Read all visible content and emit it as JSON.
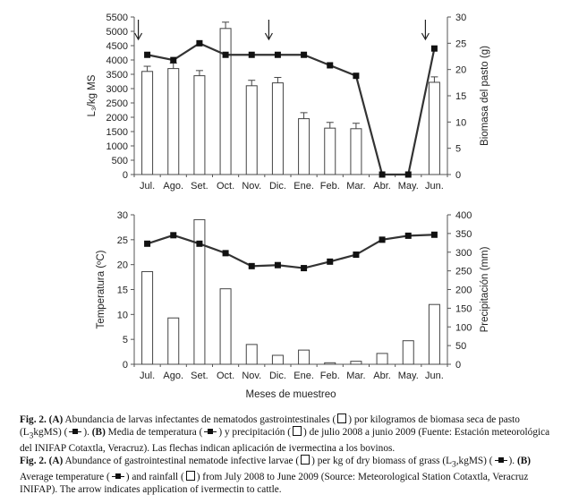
{
  "chart_data": [
    {
      "type": "bar",
      "categories": [
        "Jul.",
        "Ago.",
        "Set.",
        "Oct.",
        "Nov.",
        "Dic.",
        "Ene.",
        "Feb.",
        "Mar.",
        "Abr.",
        "May.",
        "Jun."
      ],
      "ylabel": "L₃/kg MS",
      "y2label": "Biomasa del pasto (g)",
      "ylim": [
        0,
        5500
      ],
      "y2lim": [
        0,
        30
      ],
      "yticks": [
        "0",
        "500",
        "1000",
        "1500",
        "2000",
        "2500",
        "3000",
        "3500",
        "4000",
        "4500",
        "5000",
        "5500"
      ],
      "y2ticks": [
        "0",
        "5",
        "10",
        "15",
        "20",
        "25",
        "30"
      ],
      "series": [
        {
          "type": "bar",
          "axis": "left",
          "values": [
            3600,
            3700,
            3450,
            5100,
            3100,
            3200,
            1950,
            1620,
            1600,
            0,
            0,
            3220
          ],
          "errors": [
            180,
            190,
            180,
            220,
            190,
            190,
            210,
            200,
            190,
            0,
            0,
            190
          ]
        },
        {
          "type": "line",
          "axis": "right",
          "values": [
            22.8,
            21.8,
            25.0,
            22.8,
            22.8,
            22.8,
            22.8,
            20.8,
            18.8,
            0,
            0,
            24.0
          ]
        }
      ],
      "arrows": [
        "Jul.",
        "Dic.",
        "Jun."
      ]
    },
    {
      "type": "bar",
      "categories": [
        "Jul.",
        "Ago.",
        "Set.",
        "Oct.",
        "Nov.",
        "Dic.",
        "Ene.",
        "Feb.",
        "Mar.",
        "Abr.",
        "May.",
        "Jun."
      ],
      "xlabel": "Meses de muestreo",
      "ylabel": "Temperatura (ºC)",
      "y2label": "Precipitación (mm)",
      "ylim": [
        0,
        30
      ],
      "y2lim": [
        0,
        400
      ],
      "yticks": [
        "0",
        "5",
        "10",
        "15",
        "20",
        "25",
        "30"
      ],
      "y2ticks": [
        "0",
        "50",
        "100",
        "150",
        "200",
        "250",
        "300",
        "350",
        "400"
      ],
      "series": [
        {
          "type": "bar",
          "axis": "right",
          "values": [
            248,
            124,
            387,
            202,
            53,
            24,
            38,
            4,
            8,
            29,
            63,
            160
          ]
        },
        {
          "type": "line",
          "axis": "left",
          "values": [
            24.2,
            25.9,
            24.2,
            22.3,
            19.7,
            19.9,
            19.3,
            20.6,
            22.0,
            25.0,
            25.8,
            26.0
          ]
        }
      ]
    }
  ],
  "caption": {
    "es": {
      "label": "Fig. 2.",
      "a": "(A)",
      "t1": " Abundancia de larvas infectantes de nematodos gastrointestinales (",
      "t2": ") por kilogramos de biomasa seca de pasto (L",
      "sub": "3",
      "t3": "kgMS) (",
      "t4": "). ",
      "b": "(B)",
      "t5": " Media de temperatura (",
      "t6": ") y precipitación (",
      "t7": ") de julio 2008 a junio 2009 (Fuente: Estación meteorológica del INIFAP Cotaxtla, Veracruz). Las flechas indican aplicación de ivermectina a los bovinos."
    },
    "en": {
      "label": "Fig. 2.",
      "a": "(A)",
      "t1": " Abundance of gastrointestinal nematode infective larvae (",
      "t2": ") per kg of dry biomass of grass (L",
      "sub": "3",
      "t3": ",kgMS) (",
      "t4": "). ",
      "b": "(B)",
      "t5": " Average temperature (",
      "t6": ") and rainfall (",
      "t7": ") from July 2008 to June 2009 (Source: Meteorological Station Cotaxtla, Veracruz INIFAP). The arrow indicates application of ivermectin to cattle."
    }
  }
}
